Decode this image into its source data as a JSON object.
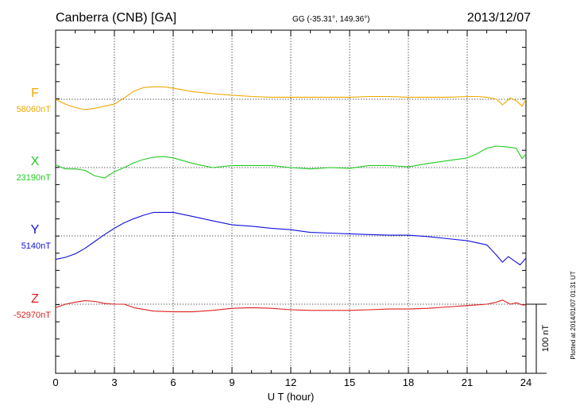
{
  "header": {
    "station": "Canberra (CNB)  [GA]",
    "coords": "GG (-35.31°, 149.36°)",
    "date": "2013/12/07"
  },
  "footer": {
    "xlabel": "U T (hour)",
    "plotted": "Plotted at 2014/01/07 01:31  UT",
    "scale_label": "100 nT"
  },
  "chart_data": {
    "type": "line",
    "title": "Canberra (CNB)  [GA]",
    "xlabel": "U T (hour)",
    "ylabel": "",
    "xlim": [
      0,
      24
    ],
    "x_ticks": [
      0,
      3,
      6,
      9,
      12,
      15,
      18,
      21,
      24
    ],
    "x_tick_labels": [
      "0",
      "3",
      "6",
      "9",
      "12",
      "15",
      "18",
      "21",
      "24"
    ],
    "grid": true,
    "scale_bar_nT": 100,
    "series": [
      {
        "name": "F",
        "color": "#f0a800",
        "baseline_label": "58060nT",
        "baseline_nT": 58060,
        "x": [
          0,
          0.5,
          1,
          1.5,
          2,
          2.5,
          3,
          3.5,
          4,
          4.5,
          5,
          5.5,
          6,
          7,
          8,
          9,
          10,
          11,
          12,
          13,
          14,
          15,
          16,
          17,
          18,
          19,
          20,
          21,
          21.5,
          22,
          22.5,
          22.8,
          23.2,
          23.5,
          23.8,
          24
        ],
        "values": [
          58060,
          58053,
          58048,
          58045,
          58047,
          58050,
          58053,
          58062,
          58072,
          58077,
          58078,
          58078,
          58076,
          58071,
          58068,
          58066,
          58064,
          58063,
          58063,
          58063,
          58063,
          58063,
          58064,
          58064,
          58063,
          58063,
          58063,
          58064,
          58064,
          58063,
          58060,
          58052,
          58062,
          58058,
          58050,
          58060
        ]
      },
      {
        "name": "X",
        "color": "#22cc22",
        "baseline_label": "23190nT",
        "baseline_nT": 23190,
        "x": [
          0,
          0.5,
          1,
          1.5,
          2,
          2.5,
          3,
          3.5,
          4,
          4.5,
          5,
          5.5,
          6,
          7,
          8,
          9,
          10,
          11,
          12,
          13,
          14,
          15,
          16,
          17,
          18,
          19,
          20,
          21,
          21.5,
          22,
          22.5,
          23,
          23.5,
          23.8,
          24
        ],
        "values": [
          23194,
          23188,
          23188,
          23186,
          23178,
          23175,
          23184,
          23190,
          23197,
          23202,
          23205,
          23206,
          23204,
          23196,
          23190,
          23193,
          23193,
          23193,
          23190,
          23188,
          23190,
          23189,
          23193,
          23193,
          23191,
          23196,
          23200,
          23204,
          23210,
          23218,
          23221,
          23220,
          23218,
          23203,
          23210
        ]
      },
      {
        "name": "Y",
        "color": "#1010dd",
        "baseline_label": "5140nT",
        "baseline_nT": 5140,
        "x": [
          0,
          0.5,
          1,
          1.5,
          2,
          2.5,
          3,
          3.5,
          4,
          4.5,
          5,
          5.5,
          6,
          7,
          8,
          9,
          10,
          11,
          12,
          13,
          14,
          15,
          16,
          17,
          18,
          19,
          20,
          21,
          21.5,
          22,
          22.5,
          22.8,
          23.1,
          23.4,
          23.7,
          24
        ],
        "values": [
          5106,
          5109,
          5114,
          5122,
          5132,
          5142,
          5151,
          5159,
          5165,
          5170,
          5174,
          5174,
          5174,
          5168,
          5162,
          5156,
          5154,
          5151,
          5149,
          5145,
          5144,
          5143,
          5142,
          5141,
          5141,
          5139,
          5136,
          5133,
          5130,
          5127,
          5112,
          5102,
          5110,
          5104,
          5098,
          5108
        ]
      },
      {
        "name": "Z",
        "color": "#dd2020",
        "baseline_label": "-52970nT",
        "baseline_nT": -52970,
        "x": [
          0,
          0.5,
          1,
          1.5,
          2,
          2.5,
          3,
          3.5,
          4,
          5,
          6,
          7,
          8,
          9,
          10,
          11,
          12,
          13,
          14,
          15,
          16,
          17,
          18,
          19,
          20,
          21,
          21.5,
          22,
          22.5,
          22.8,
          23.2,
          23.5,
          23.8,
          24
        ],
        "values": [
          -52975,
          -52970,
          -52967,
          -52965,
          -52966,
          -52969,
          -52970,
          -52970,
          -52975,
          -52980,
          -52981,
          -52981,
          -52979,
          -52976,
          -52975,
          -52976,
          -52978,
          -52979,
          -52979,
          -52979,
          -52978,
          -52977,
          -52977,
          -52976,
          -52974,
          -52972,
          -52971,
          -52970,
          -52967,
          -52964,
          -52970,
          -52968,
          -52971,
          -52971
        ]
      }
    ]
  }
}
